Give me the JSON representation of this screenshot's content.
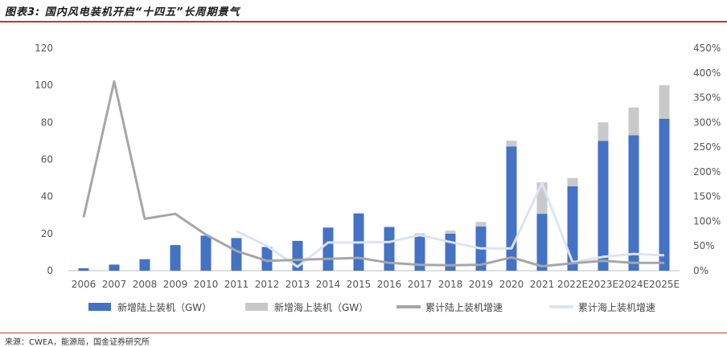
{
  "title": "图表3: 国内风电装机开启“十四五”长周期景气",
  "source": "来源：CWEA，能源局，国金证券研究所",
  "chart_data": {
    "type": "bar",
    "categories": [
      "2006",
      "2007",
      "2008",
      "2009",
      "2010",
      "2011",
      "2012",
      "2013",
      "2014",
      "2015",
      "2016",
      "2017",
      "2018",
      "2019",
      "2020",
      "2021",
      "2022E",
      "2023E",
      "2024E",
      "2025E"
    ],
    "series": [
      {
        "name": "新增陆上装机（GW）",
        "kind": "bar",
        "axis": "left",
        "color": "#4472c4",
        "values": [
          1.3,
          3.3,
          6.2,
          13.8,
          18.9,
          17.6,
          12.8,
          16.1,
          23.2,
          30.8,
          23.4,
          19.0,
          20.0,
          23.8,
          67.0,
          30.7,
          45.5,
          70.0,
          73.0,
          82.0
        ]
      },
      {
        "name": "新增海上装机（GW）",
        "kind": "bar",
        "axis": "left",
        "color": "#c9c9c9",
        "values": [
          0,
          0,
          0,
          0,
          0,
          0,
          0,
          0,
          0.2,
          0.4,
          0.6,
          1.2,
          1.6,
          2.5,
          3.1,
          16.9,
          4.5,
          10.0,
          15.0,
          18.0
        ]
      },
      {
        "name": "累计陆上装机增速",
        "kind": "line",
        "axis": "right",
        "color": "#a6a6a6",
        "values": [
          108,
          383,
          105,
          115,
          73,
          40,
          20,
          22,
          24,
          26,
          16,
          12,
          11,
          12,
          27,
          9,
          15,
          20,
          16,
          16
        ]
      },
      {
        "name": "累计海上装机增速",
        "kind": "line",
        "axis": "right",
        "color": "#dde3f2",
        "values": [
          null,
          null,
          null,
          null,
          null,
          80,
          50,
          8,
          57,
          57,
          58,
          72,
          58,
          45,
          45,
          177,
          17,
          28,
          34,
          31
        ]
      }
    ],
    "yleft": {
      "min": 0,
      "max": 120,
      "ticks": [
        0,
        20,
        40,
        60,
        80,
        100,
        120
      ]
    },
    "yright": {
      "min": 0,
      "max": 450,
      "ticks": [
        "0%",
        "50%",
        "100%",
        "150%",
        "200%",
        "250%",
        "300%",
        "350%",
        "400%",
        "450%"
      ]
    },
    "legend_position": "bottom"
  }
}
